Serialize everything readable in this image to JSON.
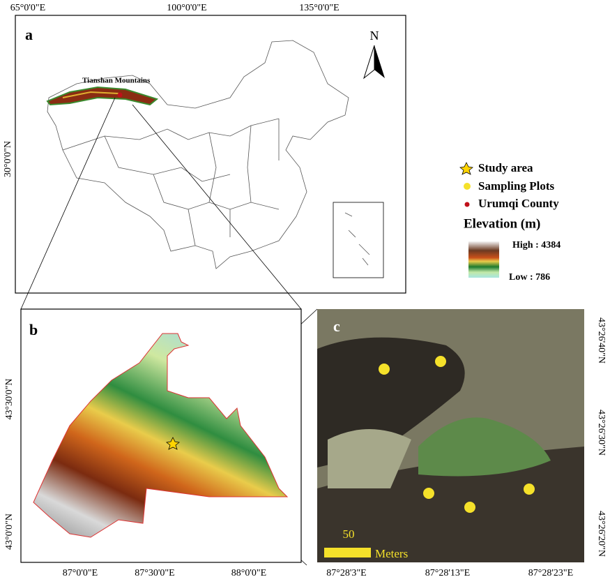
{
  "panel_a": {
    "label": "a",
    "lon_labels": [
      "65°0'0\"E",
      "100°0'0\"E",
      "135°0'0\"E"
    ],
    "lat_labels": [
      "30°0'0\"N"
    ],
    "region_label": "Tianshan Mountains",
    "north": "N"
  },
  "panel_b": {
    "label": "b",
    "lon_labels": [
      "87°0'0\"E",
      "87°30'0\"E",
      "88°0'0\"E"
    ],
    "lat_labels": [
      "43°30'0\"N",
      "43°0'0\"N"
    ]
  },
  "panel_c": {
    "label": "c",
    "lon_labels": [
      "87°28'3\"E",
      "87°28'13\"E",
      "87°28'23\"E"
    ],
    "lat_labels": [
      "43°26'40\"N",
      "43°26'30\"N",
      "43°26'20\"N"
    ],
    "scale_value": "50",
    "scale_unit": "Meters"
  },
  "legend": {
    "items": [
      "Study area",
      "Sampling Plots",
      "Urumqi County"
    ],
    "elevation_title": "Elevation (m)",
    "high": "High : 4384",
    "low": "Low : 786"
  }
}
